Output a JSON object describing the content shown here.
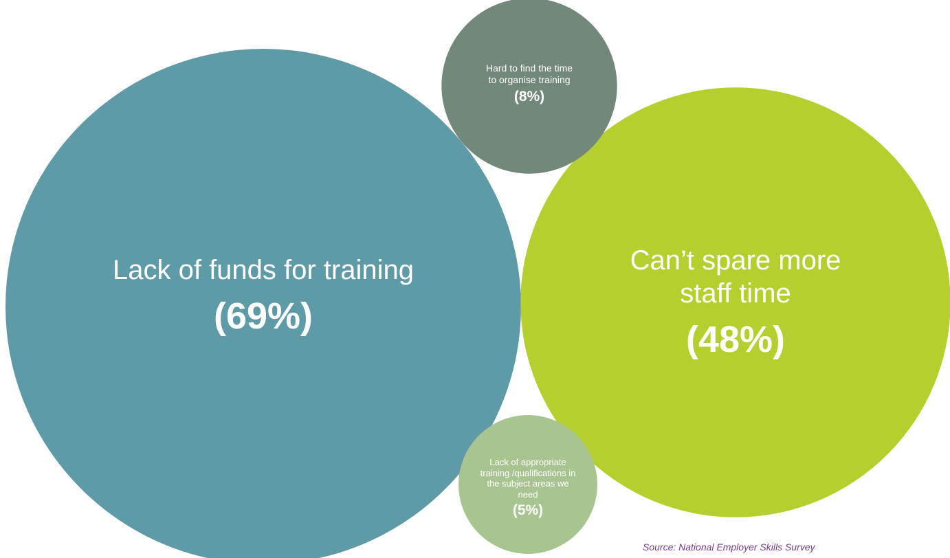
{
  "chart_data": {
    "type": "bubble",
    "categories": [
      "Lack of funds for training",
      "Can’t spare more staff time",
      "Hard to find the time to organise training",
      "Lack of appropriate training /qualifications in the subject areas we need"
    ],
    "values": [
      69,
      48,
      8,
      5
    ],
    "value_labels": [
      "(69%)",
      "(48%)",
      "(8%)",
      "(5%)"
    ],
    "colors": [
      "#5f9ba6",
      "#b5cf2e",
      "#72887a",
      "#a8c491"
    ],
    "source": "Source: National Employer Skills Survey"
  }
}
